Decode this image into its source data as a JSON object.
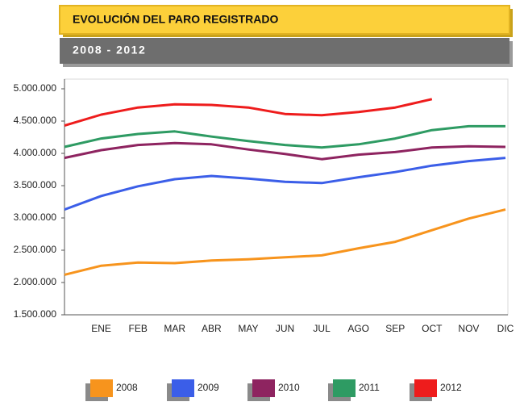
{
  "chart_data": {
    "type": "line",
    "title": "EVOLUCIÓN DEL PARO REGISTRADO",
    "subtitle": "2008 - 2012",
    "categories": [
      null,
      "ENE",
      "FEB",
      "MAR",
      "ABR",
      "MAY",
      "JUN",
      "JUL",
      "AGO",
      "SEP",
      "OCT",
      "NOV",
      "DIC"
    ],
    "series": [
      {
        "name": "2008",
        "color": "#f7941d",
        "values": [
          2120000,
          2260000,
          2310000,
          2300000,
          2340000,
          2360000,
          2390000,
          2420000,
          2530000,
          2630000,
          2810000,
          2990000,
          3130000
        ]
      },
      {
        "name": "2009",
        "color": "#3b5ee8",
        "values": [
          3130000,
          3340000,
          3490000,
          3600000,
          3650000,
          3610000,
          3560000,
          3540000,
          3630000,
          3710000,
          3810000,
          3880000,
          3930000
        ]
      },
      {
        "name": "2010",
        "color": "#8e2460",
        "values": [
          3930000,
          4050000,
          4130000,
          4160000,
          4140000,
          4060000,
          3990000,
          3910000,
          3980000,
          4020000,
          4090000,
          4110000,
          4100000
        ]
      },
      {
        "name": "2011",
        "color": "#2e9b63",
        "values": [
          4100000,
          4230000,
          4300000,
          4340000,
          4260000,
          4190000,
          4130000,
          4090000,
          4140000,
          4230000,
          4360000,
          4420000,
          4420000
        ]
      },
      {
        "name": "2012",
        "color": "#ee1c1c",
        "values": [
          4430000,
          4600000,
          4710000,
          4760000,
          4750000,
          4710000,
          4610000,
          4590000,
          4640000,
          4710000,
          4840000,
          null,
          null
        ]
      }
    ],
    "ylim": [
      1500000,
      5000000
    ],
    "yticks": [
      {
        "value": 1500000,
        "label": "1.500.000"
      },
      {
        "value": 2000000,
        "label": "2.000.000"
      },
      {
        "value": 2500000,
        "label": "2.500.000"
      },
      {
        "value": 3000000,
        "label": "3.000.000"
      },
      {
        "value": 3500000,
        "label": "3.500.000"
      },
      {
        "value": 4000000,
        "label": "4.000.000"
      },
      {
        "value": 4500000,
        "label": "4.500.000"
      },
      {
        "value": 5000000,
        "label": "5.000.000"
      }
    ],
    "grid": false,
    "legend": "bottom"
  }
}
